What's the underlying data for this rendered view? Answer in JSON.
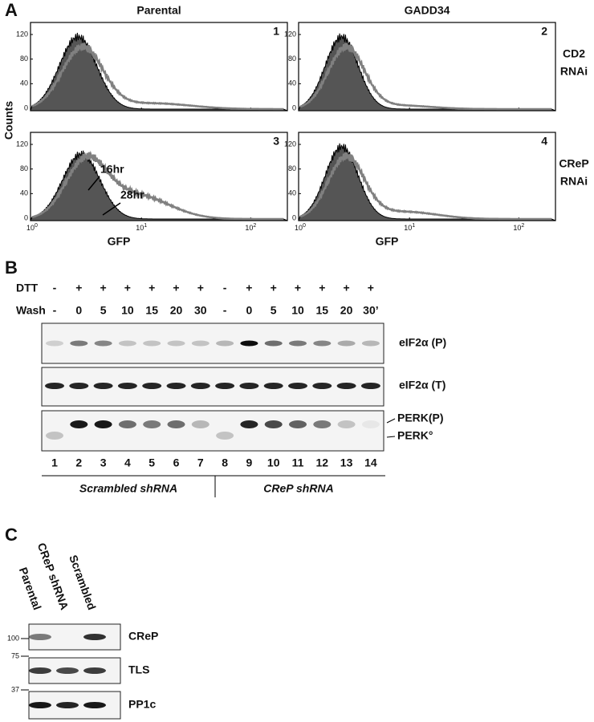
{
  "panel_a": {
    "label": "A",
    "columns": [
      "Parental",
      "GADD34"
    ],
    "rows": [
      [
        "CD2",
        "RNAi"
      ],
      [
        "CReP",
        "RNAi"
      ]
    ],
    "y_axis_title": "Counts",
    "x_axis_title": "GFP",
    "yticks": [
      0,
      40,
      80,
      120
    ],
    "xticks": [
      {
        "base": "10",
        "exp": "0"
      },
      {
        "base": "10",
        "exp": "1"
      },
      {
        "base": "10",
        "exp": "2"
      }
    ],
    "plot_numbers": [
      "1",
      "2",
      "3",
      "4"
    ],
    "annotations": [
      "16hr",
      "28hr"
    ]
  },
  "panel_b": {
    "label": "B",
    "row_labels": [
      "DTT",
      "Wash"
    ],
    "dtt": [
      "-",
      "+",
      "+",
      "+",
      "+",
      "+",
      "+",
      "-",
      "+",
      "+",
      "+",
      "+",
      "+",
      "+"
    ],
    "wash": [
      "-",
      "0",
      "5",
      "10",
      "15",
      "20",
      "30",
      "-",
      "0",
      "5",
      "10",
      "15",
      "20",
      "30’"
    ],
    "blot_labels": [
      "eIF2α (P)",
      "eIF2α (T)"
    ],
    "perk_labels": [
      "PERK(P)",
      "PERK°"
    ],
    "lanes": [
      "1",
      "2",
      "3",
      "4",
      "5",
      "6",
      "7",
      "8",
      "9",
      "10",
      "11",
      "12",
      "13",
      "14"
    ],
    "groups": [
      "Scrambled shRNA",
      "CReP shRNA"
    ]
  },
  "panel_c": {
    "label": "C",
    "lanes": [
      "Parental",
      "CReP shRNA",
      "Scrambled"
    ],
    "markers": [
      "100",
      "75",
      "37"
    ],
    "blots": [
      "CReP",
      "TLS",
      "PP1c"
    ]
  }
}
